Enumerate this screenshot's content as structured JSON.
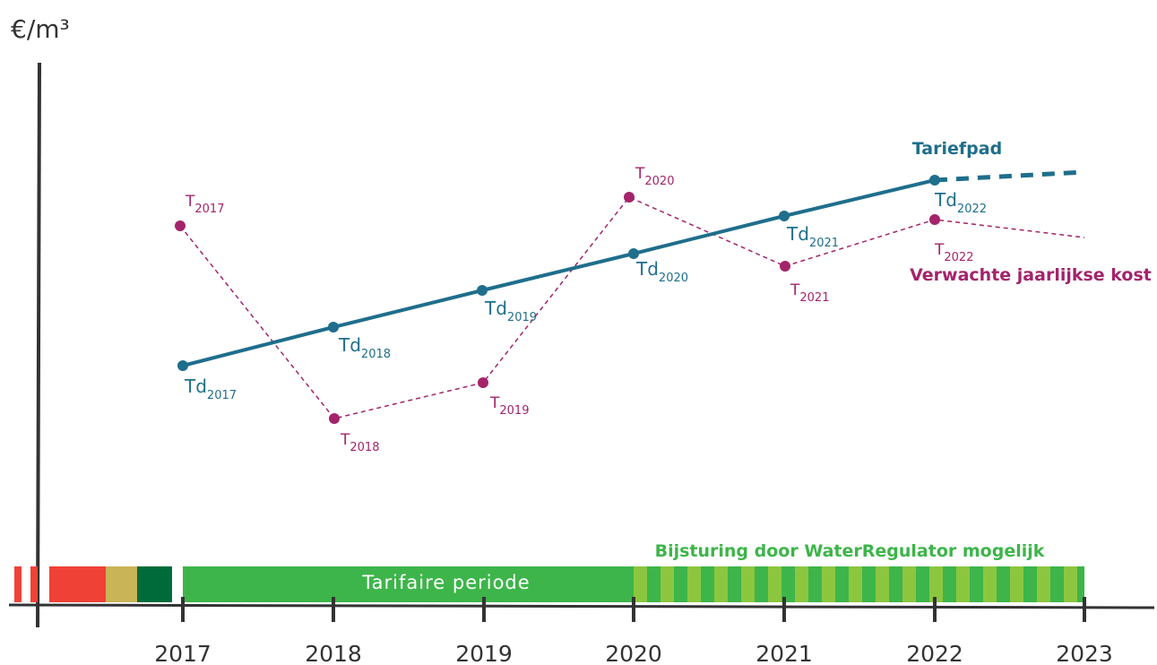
{
  "y_axis_label": "€/m³",
  "years": [
    "2017",
    "2018",
    "2019",
    "2020",
    "2021",
    "2022",
    "2023"
  ],
  "td_points": [
    {
      "label": "Td",
      "sub": "2017"
    },
    {
      "label": "Td",
      "sub": "2018"
    },
    {
      "label": "Td",
      "sub": "2019"
    },
    {
      "label": "Td",
      "sub": "2020"
    },
    {
      "label": "Td",
      "sub": "2021"
    },
    {
      "label": "Td",
      "sub": "2022"
    }
  ],
  "t_points": [
    {
      "label": "T",
      "sub": "2017"
    },
    {
      "label": "T",
      "sub": "2018"
    },
    {
      "label": "T",
      "sub": "2019"
    },
    {
      "label": "T",
      "sub": "2020"
    },
    {
      "label": "T",
      "sub": "2021"
    },
    {
      "label": "T",
      "sub": "2022"
    }
  ],
  "tariefpad_label": "Tariefpad",
  "cost_label": "Verwachte jaarlijkse kost",
  "period_label": "Tarifaire periode",
  "adjust_label": "Bijsturing door WaterRegulator mogelijk"
}
